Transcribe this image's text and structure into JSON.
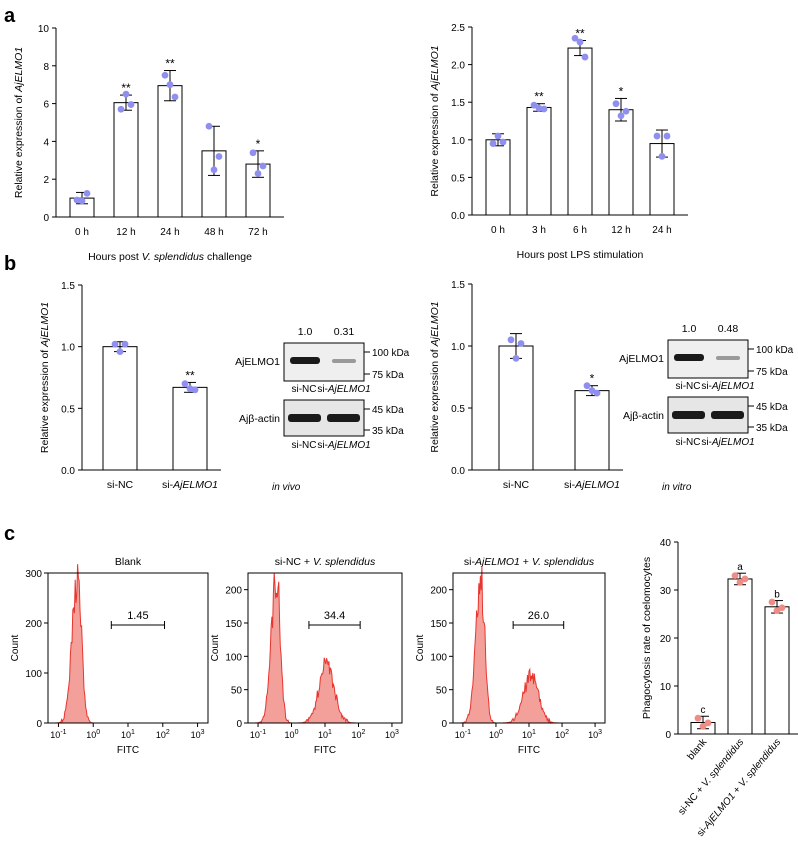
{
  "panel_labels": {
    "a": "a",
    "b": "b",
    "c": "c"
  },
  "colors": {
    "dot": "#8f8ff0",
    "flow": "#e8352e",
    "flow_fill": "#f3a09b",
    "dot_c": "#f08c86"
  },
  "chart_data": [
    {
      "id": "a1",
      "type": "bar",
      "categories": [
        "0 h",
        "12 h",
        "24 h",
        "48 h",
        "72 h"
      ],
      "values": [
        1.0,
        6.05,
        6.95,
        3.5,
        2.8
      ],
      "errors": [
        0.3,
        0.4,
        0.8,
        1.3,
        0.7
      ],
      "points": [
        [
          0.9,
          0.85,
          1.25
        ],
        [
          5.7,
          6.5,
          5.95
        ],
        [
          7.5,
          7.0,
          6.35
        ],
        [
          4.8,
          2.5,
          3.2
        ],
        [
          3.4,
          2.3,
          2.7
        ]
      ],
      "significance": [
        "",
        "**",
        "**",
        "",
        "*"
      ],
      "ylabel": "Relative expression of AjELMO1",
      "ylabel_parts": [
        "Relative expression of ",
        "AjELMO1"
      ],
      "xlabel_parts": [
        "Hours post ",
        "V. splendidus",
        " challenge"
      ],
      "ylim": [
        0,
        10
      ],
      "yticks": [
        "0",
        "2",
        "4",
        "6",
        "8",
        "10"
      ],
      "ytick_values": [
        0,
        2,
        4,
        6,
        8,
        10
      ]
    },
    {
      "id": "a2",
      "type": "bar",
      "categories": [
        "0 h",
        "3 h",
        "6 h",
        "12 h",
        "24 h"
      ],
      "values": [
        1.0,
        1.43,
        2.22,
        1.4,
        0.95
      ],
      "errors": [
        0.08,
        0.05,
        0.1,
        0.15,
        0.18
      ],
      "points": [
        [
          0.95,
          1.05,
          0.97
        ],
        [
          1.46,
          1.42,
          1.41
        ],
        [
          2.35,
          2.3,
          2.1
        ],
        [
          1.48,
          1.32,
          1.38
        ],
        [
          1.05,
          0.78,
          1.05
        ]
      ],
      "significance": [
        "",
        "**",
        "**",
        "*",
        ""
      ],
      "ylabel_parts": [
        "Relative expression of ",
        "AjELMO1"
      ],
      "xlabel_parts": [
        "Hours post LPS stimulation"
      ],
      "ylim": [
        0,
        2.5
      ],
      "yticks": [
        "0.0",
        "0.5",
        "1.0",
        "1.5",
        "2.0",
        "2.5"
      ],
      "ytick_values": [
        0,
        0.5,
        1.0,
        1.5,
        2.0,
        2.5
      ]
    },
    {
      "id": "b1",
      "type": "bar",
      "categories": [
        "si-NC",
        "si-AjELMO1"
      ],
      "category_parts": [
        [
          "si-NC",
          ""
        ],
        [
          "si-",
          "AjELMO1"
        ]
      ],
      "values": [
        1.0,
        0.67
      ],
      "errors": [
        0.04,
        0.04
      ],
      "points": [
        [
          1.02,
          0.96,
          1.02
        ],
        [
          0.7,
          0.66,
          0.65
        ]
      ],
      "significance": [
        "",
        "**"
      ],
      "ylabel_parts": [
        "Relative expression of ",
        "AjELMO1"
      ],
      "note": "in vivo",
      "ylim": [
        0,
        1.5
      ],
      "yticks": [
        "0.0",
        "0.5",
        "1.0",
        "1.5"
      ],
      "ytick_values": [
        0,
        0.5,
        1.0,
        1.5
      ]
    },
    {
      "id": "b2",
      "type": "bar",
      "categories": [
        "si-NC",
        "si-AjELMO1"
      ],
      "category_parts": [
        [
          "si-NC",
          ""
        ],
        [
          "si-",
          "AjELMO1"
        ]
      ],
      "values": [
        1.0,
        0.64
      ],
      "errors": [
        0.1,
        0.04
      ],
      "points": [
        [
          1.05,
          0.9,
          1.02
        ],
        [
          0.68,
          0.64,
          0.62
        ]
      ],
      "significance": [
        "",
        "*"
      ],
      "ylabel_parts": [
        "Relative expression of ",
        "AjELMO1"
      ],
      "note": "in vitro",
      "ylim": [
        0,
        1.5
      ],
      "yticks": [
        "0.0",
        "0.5",
        "1.0",
        "1.5"
      ],
      "ytick_values": [
        0,
        0.5,
        1.0,
        1.5
      ]
    },
    {
      "id": "c4",
      "type": "bar",
      "categories": [
        "blank",
        "si-NC + V. splendidus",
        "si-AjELMO1 + V. splendidus"
      ],
      "category_parts": [
        [
          "blank"
        ],
        [
          "si-NC + ",
          "V. splendidus"
        ],
        [
          "si-",
          "AjELMO1",
          " + ",
          "V. splendidus"
        ]
      ],
      "values": [
        2.4,
        32.3,
        26.5
      ],
      "errors": [
        1.3,
        1.2,
        1.3
      ],
      "points": [
        [
          3.3,
          1.6,
          2.3
        ],
        [
          33.0,
          31.6,
          32.3
        ],
        [
          27.5,
          25.7,
          26.3
        ]
      ],
      "significance": [
        "c",
        "a",
        "b"
      ],
      "ylabel": "Phagocytosis rate of coelomocytes",
      "ylim": [
        0,
        40
      ],
      "yticks": [
        "0",
        "10",
        "20",
        "30",
        "40"
      ],
      "ytick_values": [
        0,
        10,
        20,
        30,
        40
      ]
    }
  ],
  "blots": [
    {
      "id": "blot1",
      "values": [
        "1.0",
        "0.31"
      ],
      "band1_label": "AjELMO1",
      "band2_label": "Ajβ-actin",
      "markers_top": [
        "100 kDa",
        "75 kDa"
      ],
      "markers_bottom": [
        "45 kDa",
        "35 kDa"
      ],
      "lanes": [
        "si-NC",
        "si-",
        "AjELMO1"
      ]
    },
    {
      "id": "blot2",
      "values": [
        "1.0",
        "0.48"
      ],
      "band1_label": "AjELMO1",
      "band2_label": "Ajβ-actin",
      "markers_top": [
        "100 kDa",
        "75 kDa"
      ],
      "markers_bottom": [
        "45 kDa",
        "35 kDa"
      ],
      "lanes": [
        "si-NC",
        "si-",
        "AjELMO1"
      ]
    }
  ],
  "flow": [
    {
      "id": "f1",
      "title_parts": [
        "Blank"
      ],
      "gate": "1.45",
      "ylim": [
        0,
        300
      ],
      "yticks": [
        "0",
        "100",
        "200",
        "300"
      ],
      "ytick_values": [
        0,
        100,
        200,
        300
      ],
      "peak1": 290,
      "peak2": 0,
      "xlabel": "FITC",
      "ylabel": "Count"
    },
    {
      "id": "f2",
      "title_parts": [
        "si-NC + ",
        "V. splendidus"
      ],
      "gate": "34.4",
      "ylim": [
        0,
        225
      ],
      "yticks": [
        "0",
        "50",
        "100",
        "150",
        "200"
      ],
      "ytick_values": [
        0,
        50,
        100,
        150,
        200
      ],
      "peak1": 220,
      "peak2": 85,
      "xlabel": "FITC",
      "ylabel": "Count"
    },
    {
      "id": "f3",
      "title_parts": [
        "si-",
        "AjELMO1",
        " + ",
        "V. splendidus"
      ],
      "gate": "26.0",
      "ylim": [
        0,
        225
      ],
      "yticks": [
        "0",
        "50",
        "100",
        "150",
        "200"
      ],
      "ytick_values": [
        0,
        50,
        100,
        150,
        200
      ],
      "peak1": 215,
      "peak2": 70,
      "xlabel": "FITC",
      "ylabel": "Count"
    }
  ],
  "flow_xticks": [
    {
      "base": "10",
      "exp": "-1"
    },
    {
      "base": "10",
      "exp": "0"
    },
    {
      "base": "10",
      "exp": "1"
    },
    {
      "base": "10",
      "exp": "2"
    },
    {
      "base": "10",
      "exp": "3"
    }
  ]
}
